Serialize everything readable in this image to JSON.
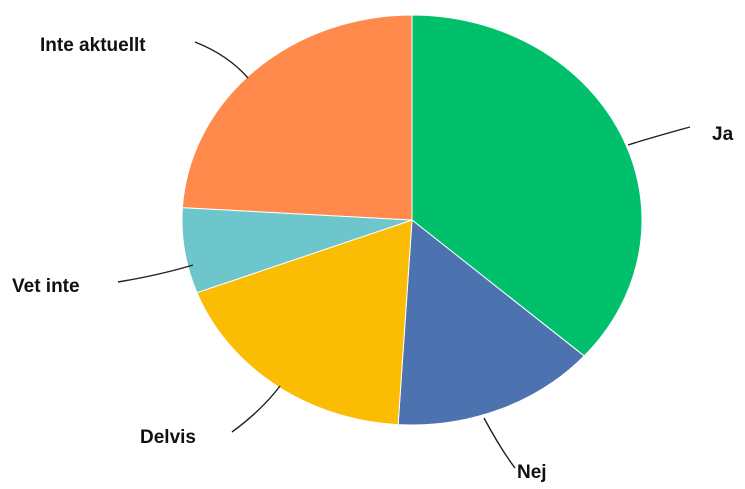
{
  "chart_data": {
    "type": "pie",
    "title": "",
    "slices": [
      {
        "label": "Ja",
        "value": 38,
        "color": "#00C06B"
      },
      {
        "label": "Nej",
        "value": 15,
        "color": "#4C72B0"
      },
      {
        "label": "Delvis",
        "value": 19,
        "color": "#FBBC04"
      },
      {
        "label": "Vet inte",
        "value": 7,
        "color": "#6CC6CC"
      },
      {
        "label": "Inte aktuellt",
        "value": 25,
        "color": "#FF8A4C"
      }
    ],
    "start_angle_deg": 0,
    "direction": "clockwise",
    "legend": "none",
    "labels": "outside-with-leader-lines"
  }
}
